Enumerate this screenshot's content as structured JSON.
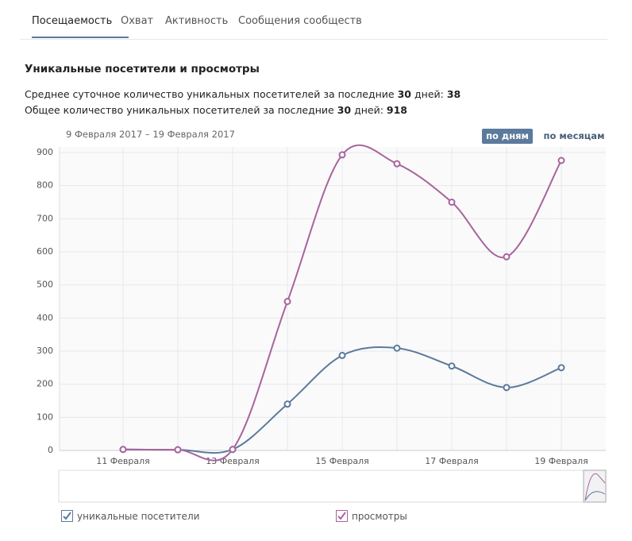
{
  "tabs": [
    "Посещаемость",
    "Охват",
    "Активность",
    "Сообщения сообществ"
  ],
  "heading": "Уникальные посетители и просмотры",
  "stats": [
    {
      "text": "Среднее суточное количество уникальных посетителей за последние",
      "days": "30",
      "suffix": "дней:",
      "value": "38"
    },
    {
      "text": "Общее количество уникальных посетителей за последние",
      "days": "30",
      "suffix": "дней:",
      "value": "918"
    }
  ],
  "date_range": "9 Февраля 2017 – 19 Февраля 2017",
  "buttons": [
    "по дням",
    "по месяцам"
  ],
  "chart_data": {
    "type": "line",
    "categories": [
      "11 Февраля",
      null,
      "13 Февраля",
      null,
      "15 Февраля",
      null,
      "17 Февраля",
      null,
      "19 Февраля"
    ],
    "series": [
      {
        "name": "уникальные посетители",
        "color": "#5b7a9c",
        "values": [
          3,
          2,
          3,
          140,
          287,
          309,
          255,
          190,
          250
        ]
      },
      {
        "name": "просмотры",
        "color": "#a8649c",
        "values": [
          3,
          2,
          3,
          450,
          893,
          866,
          750,
          585,
          876
        ]
      }
    ],
    "ylim": [
      0,
      900
    ],
    "yticks": [
      0,
      100,
      200,
      300,
      400,
      500,
      600,
      700,
      800,
      900
    ],
    "grid": true
  }
}
